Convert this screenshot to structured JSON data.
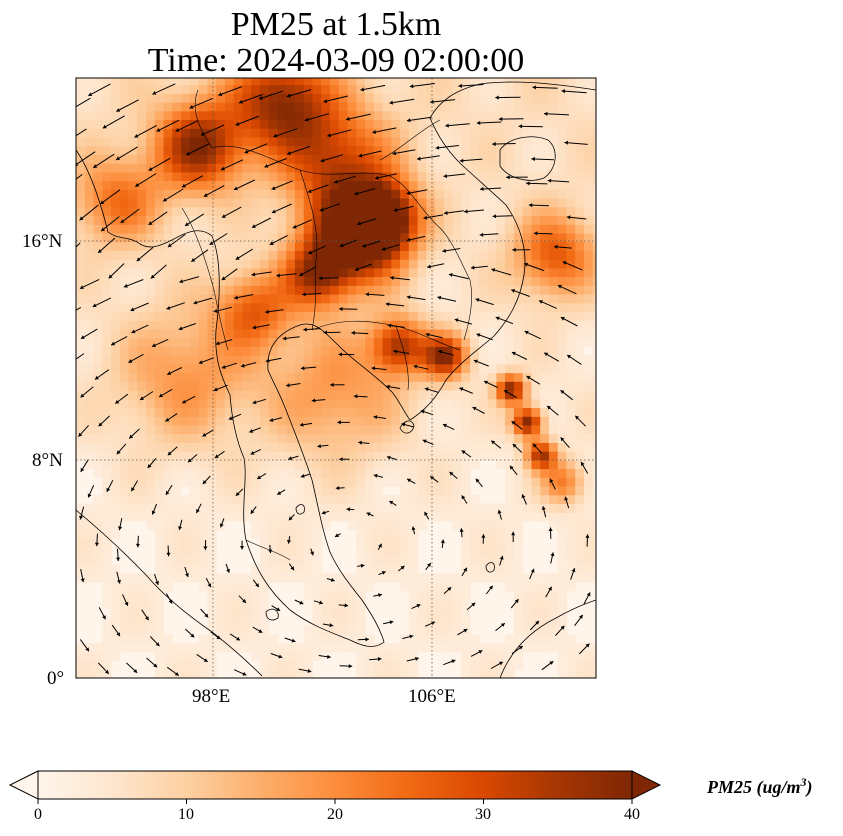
{
  "title": {
    "line1": "PM25 at 1.5km",
    "line2": "Time: 2024-03-09 02:00:00"
  },
  "map": {
    "variable": "PM25",
    "lon_range": [
      93,
      112
    ],
    "lat_range": [
      0,
      22
    ],
    "lon_ticks": [
      {
        "value": 98,
        "label": "98°E"
      },
      {
        "value": 106,
        "label": "106°E"
      }
    ],
    "lat_ticks": [
      {
        "value": 0,
        "label": "0°"
      },
      {
        "value": 8,
        "label": "8°N"
      },
      {
        "value": 16,
        "label": "16°N"
      }
    ],
    "gridlines": "dotted",
    "overlays": [
      "coastlines",
      "country-borders",
      "wind-vectors"
    ],
    "plumes": [
      {
        "lon": 103.2,
        "lat": 16.2,
        "intensity": 38,
        "spread": 1.7
      },
      {
        "lon": 104.2,
        "lat": 16.9,
        "intensity": 34,
        "spread": 1.3
      },
      {
        "lon": 101.8,
        "lat": 14.8,
        "intensity": 26,
        "spread": 1.2
      },
      {
        "lon": 97.5,
        "lat": 19.5,
        "intensity": 32,
        "spread": 1.6
      },
      {
        "lon": 100.5,
        "lat": 21.2,
        "intensity": 30,
        "spread": 1.8
      },
      {
        "lon": 102.5,
        "lat": 19.0,
        "intensity": 24,
        "spread": 2.0
      },
      {
        "lon": 94.5,
        "lat": 17.5,
        "intensity": 18,
        "spread": 1.6
      },
      {
        "lon": 99.5,
        "lat": 13.5,
        "intensity": 20,
        "spread": 1.4
      },
      {
        "lon": 104.8,
        "lat": 12.2,
        "intensity": 28,
        "spread": 1.0
      },
      {
        "lon": 106.5,
        "lat": 11.8,
        "intensity": 32,
        "spread": 0.8
      },
      {
        "lon": 110.5,
        "lat": 15.5,
        "intensity": 22,
        "spread": 1.5
      },
      {
        "lon": 109.5,
        "lat": 9.4,
        "intensity": 36,
        "spread": 0.55
      },
      {
        "lon": 108.9,
        "lat": 10.6,
        "intensity": 34,
        "spread": 0.55
      },
      {
        "lon": 110.0,
        "lat": 8.2,
        "intensity": 30,
        "spread": 0.55
      },
      {
        "lon": 110.8,
        "lat": 7.2,
        "intensity": 18,
        "spread": 0.8
      },
      {
        "lon": 97.0,
        "lat": 11.0,
        "intensity": 14,
        "spread": 2.5
      },
      {
        "lon": 102.5,
        "lat": 10.5,
        "intensity": 14,
        "spread": 2.5
      }
    ]
  },
  "colorbar": {
    "label": "PM25 (ug/m",
    "label_sup": "3",
    "label_end": ")",
    "min": 0,
    "max": 40,
    "ticks": [
      "0",
      "10",
      "20",
      "30",
      "40"
    ],
    "colormap": [
      "#fff5eb",
      "#fee6ce",
      "#fdd0a2",
      "#fdae6b",
      "#fd8d3c",
      "#f16913",
      "#d94801",
      "#a63603",
      "#7f2704"
    ],
    "extend": "both"
  }
}
